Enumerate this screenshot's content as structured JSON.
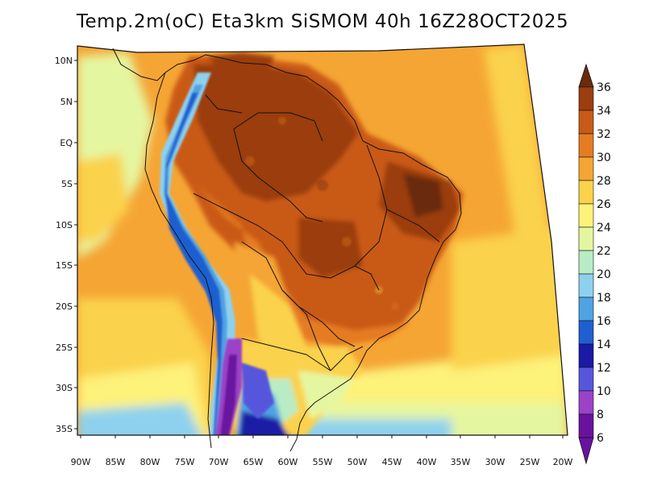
{
  "title": "Temp.2m(oC) Eta3km SiSMOM 40h 16Z28OCT2025",
  "axes": {
    "y_ticks": [
      "10N",
      "5N",
      "EQ",
      "5S",
      "10S",
      "15S",
      "20S",
      "25S",
      "30S",
      "35S"
    ],
    "x_ticks": [
      "90W",
      "85W",
      "80W",
      "75W",
      "70W",
      "65W",
      "60W",
      "55W",
      "50W",
      "45W",
      "40W",
      "35W",
      "30W",
      "25W",
      "20W"
    ]
  },
  "colorbar": {
    "labels": [
      "36",
      "34",
      "32",
      "30",
      "28",
      "26",
      "24",
      "22",
      "20",
      "18",
      "16",
      "14",
      "12",
      "10",
      "8",
      "6"
    ],
    "colors": [
      "#6a2b0c",
      "#9b3e10",
      "#c95a17",
      "#e57c22",
      "#f5a534",
      "#fbd24b",
      "#fdf27a",
      "#e5f6a0",
      "#b8ecc4",
      "#8ed1ee",
      "#4fa3e3",
      "#1f5fd1",
      "#1a1aa6",
      "#5656dd",
      "#9b42c8",
      "#6a12a0"
    ]
  },
  "chart_data": {
    "type": "heatmap",
    "title": "Temp.2m(oC) Eta3km SiSMOM 40h 16Z28OCT2025",
    "variable": "Temp.2m(oC)",
    "xlabel": "",
    "ylabel": "",
    "xlim": [
      "90W",
      "20W"
    ],
    "ylim": [
      "38S",
      "12N"
    ],
    "color_levels": [
      6,
      8,
      10,
      12,
      14,
      16,
      18,
      20,
      22,
      24,
      26,
      28,
      30,
      32,
      34,
      36
    ]
  }
}
